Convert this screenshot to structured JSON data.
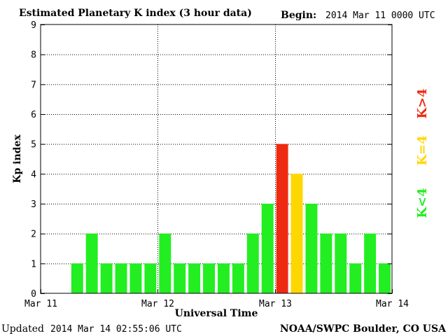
{
  "chart_data": {
    "type": "bar",
    "title": "Estimated Planetary K index (3 hour data)",
    "begin_label": "Begin:",
    "begin_value": "2014 Mar 11 0000 UTC",
    "ylabel": "Kp index",
    "xlabel": "Universal Time",
    "ylim": [
      0,
      9
    ],
    "yticks": [
      "0",
      "1",
      "2",
      "3",
      "4",
      "5",
      "6",
      "7",
      "8",
      "9"
    ],
    "xticks": [
      "Mar 11",
      "Mar 12",
      "Mar 13",
      "Mar 14"
    ],
    "grid": true,
    "bar_slots": 24,
    "values": [
      null,
      null,
      1,
      2,
      1,
      1,
      1,
      1,
      2,
      1,
      1,
      1,
      1,
      1,
      2,
      3,
      5,
      4,
      3,
      2,
      2,
      1,
      2,
      1
    ],
    "colors": {
      "low": "#22ee22",
      "equal": "#ffd700",
      "high": "#ee2a12"
    },
    "legend": [
      "K<4",
      "K=4",
      "K>4"
    ],
    "legend_position": "right"
  },
  "footer": {
    "updated_label": "Updated",
    "updated_value": "2014 Mar 14 02:55:06 UTC",
    "credit": "NOAA/SWPC Boulder, CO USA"
  }
}
